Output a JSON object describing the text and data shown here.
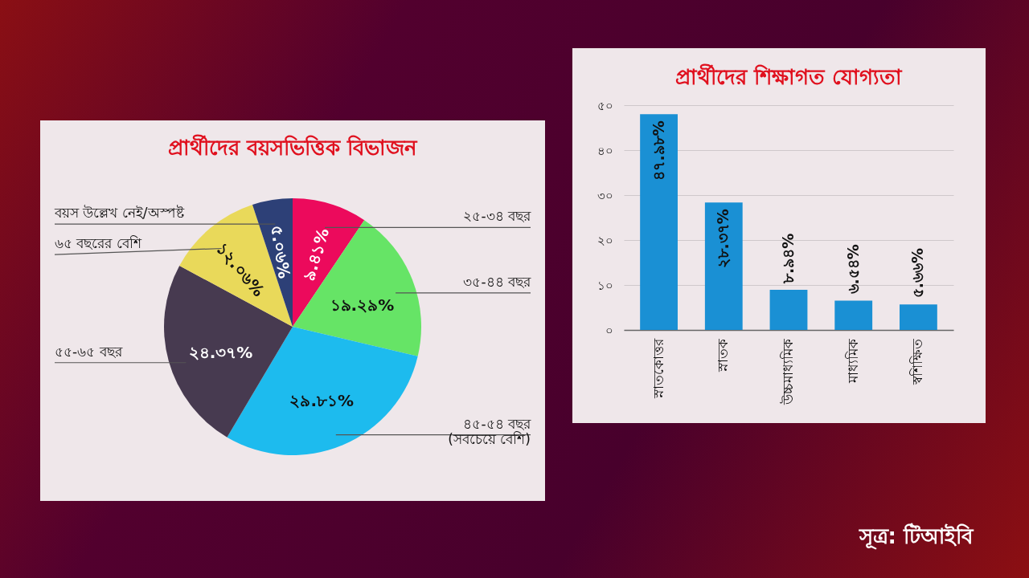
{
  "chart_data": [
    {
      "type": "pie",
      "title": "প্রার্থীদের বয়সভিত্তিক বিভাজন",
      "categories": [
        "২৫-৩৪ বছর",
        "৩৫-৪৪ বছর",
        "৪৫-৫৪ বছর\n(সবচেয়ে বেশি)",
        "৫৫-৬৫ বছর",
        "৬৫ বছরের বেশি",
        "বয়স উল্লেখ নেই/অস্পষ্ট"
      ],
      "values": [
        9.41,
        19.29,
        29.81,
        24.37,
        12.06,
        5.06
      ],
      "colors": [
        "#ec0a5c",
        "#66e466",
        "#1dbbee",
        "#473a50",
        "#e9d95a",
        "#2d4077"
      ],
      "value_labels": [
        "৯.৪১%",
        "১৯.২৯%",
        "২৯.৮১%",
        "২৪.৩৭%",
        "১২.০৬%",
        "৫.০৬%"
      ]
    },
    {
      "type": "bar",
      "title": "প্রার্থীদের শিক্ষাগত যোগ্যতা",
      "categories": [
        "স্নাতকোত্তর",
        "স্নাতক",
        "উচ্চমাধ্যমিক",
        "মাধ্যমিক",
        "স্বশিক্ষিত"
      ],
      "values": [
        47.98,
        28.37,
        8.94,
        6.54,
        5.66
      ],
      "color": "#1a90d4",
      "value_labels": [
        "৪৭.৯৮%",
        "২৮.৩৭%",
        "৮.৯৪%",
        "৬.৫৪%",
        "৫.৬৬%"
      ],
      "ylim": [
        0,
        50
      ],
      "yticks": [
        {
          "value": 0,
          "label": "০"
        },
        {
          "value": 10,
          "label": "১০"
        },
        {
          "value": 20,
          "label": "২০"
        },
        {
          "value": 30,
          "label": "৩০"
        },
        {
          "value": 40,
          "label": "৪০"
        },
        {
          "value": 50,
          "label": "৫০"
        }
      ],
      "grid": "y",
      "annotations": [
        "সূত্র: টিআইবি"
      ]
    }
  ]
}
